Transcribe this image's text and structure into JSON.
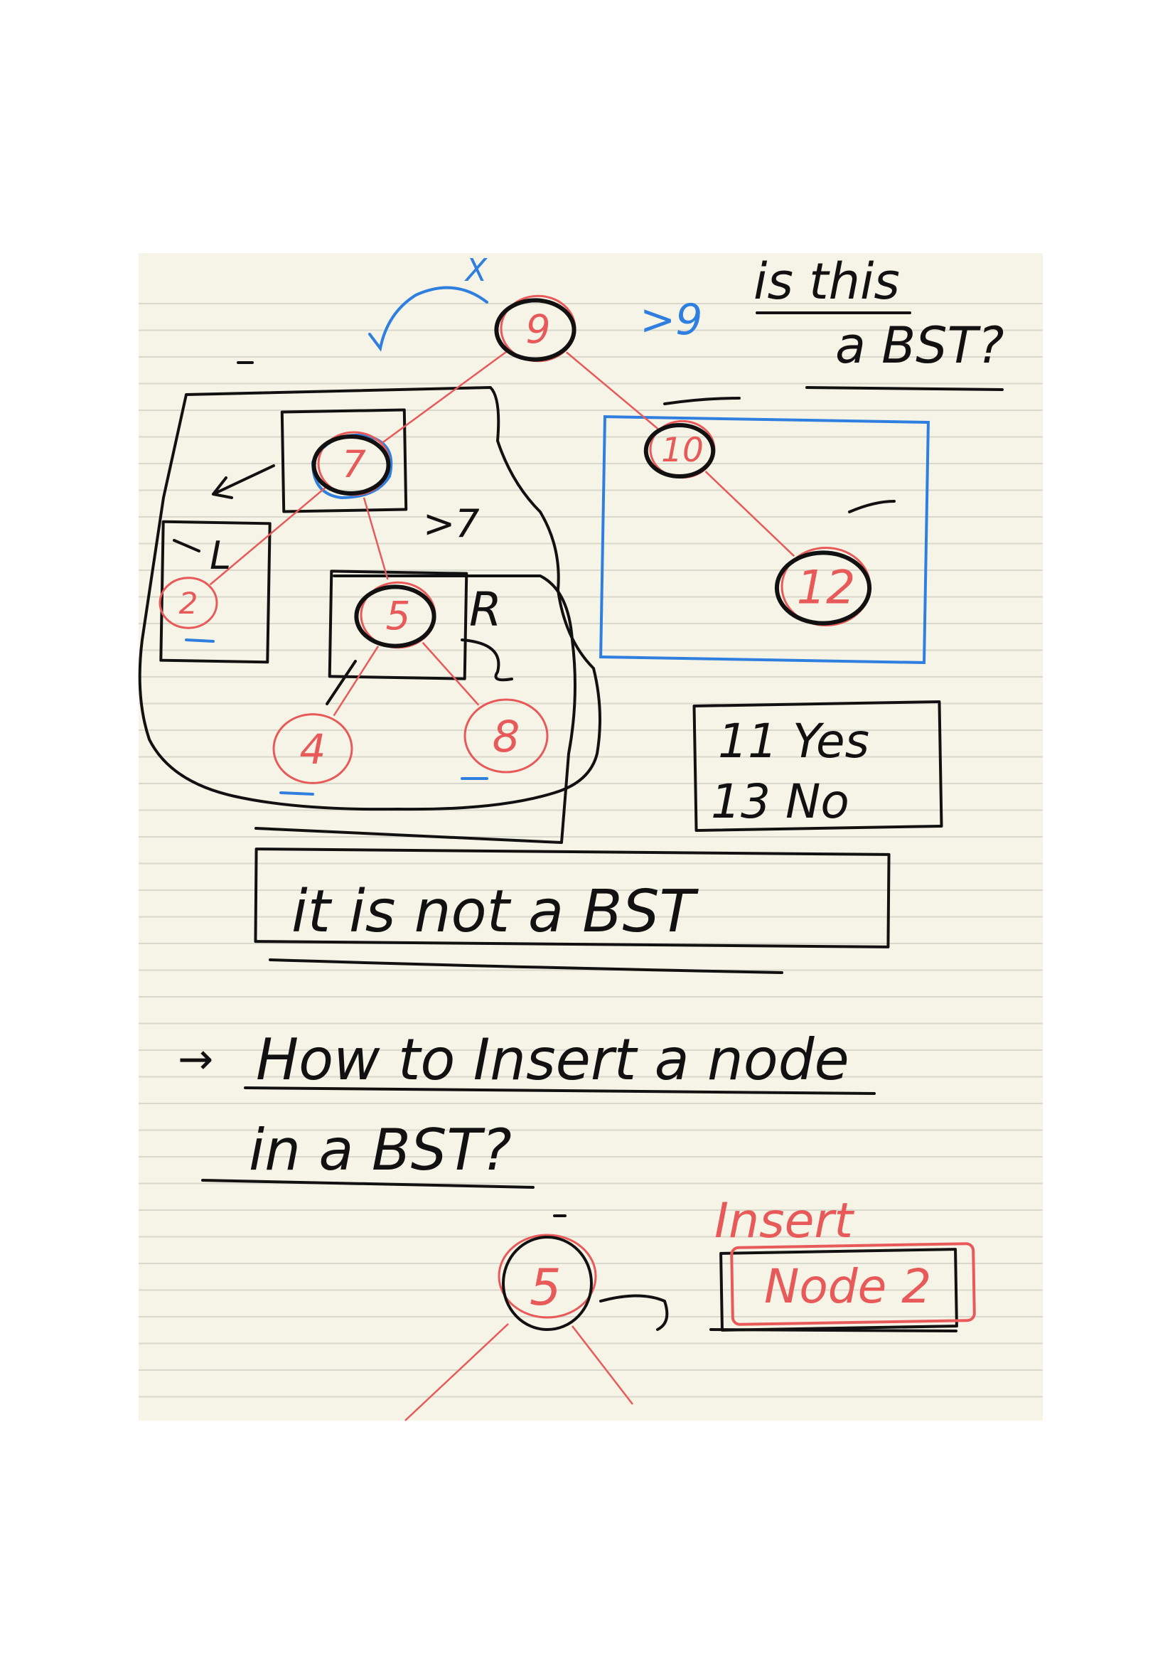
{
  "colors": {
    "paper": "#f6f4e6",
    "rule_line": "#d9d8cc",
    "black_ink": "#111111",
    "red_ink": "#e85a5a",
    "blue_ink": "#2f7fe0"
  },
  "tree1": {
    "nodes": [
      {
        "id": "n9",
        "label": "9"
      },
      {
        "id": "n7",
        "label": "7"
      },
      {
        "id": "n10",
        "label": "10"
      },
      {
        "id": "n2",
        "label": "2"
      },
      {
        "id": "n5",
        "label": "5"
      },
      {
        "id": "n12",
        "label": "12"
      },
      {
        "id": "n4",
        "label": "4"
      },
      {
        "id": "n8",
        "label": "8"
      }
    ],
    "edges": [
      [
        "n9",
        "n7"
      ],
      [
        "n9",
        "n10"
      ],
      [
        "n7",
        "n2"
      ],
      [
        "n7",
        "n5"
      ],
      [
        "n10",
        "n12"
      ],
      [
        "n5",
        "n4"
      ],
      [
        "n5",
        "n8"
      ]
    ],
    "marks": {
      "root_blue": "X",
      "gt9": ">9",
      "gt7": ">7",
      "left": "L",
      "right": "R"
    }
  },
  "question": {
    "line1": "is this",
    "line2": "a BST?"
  },
  "answer_box": {
    "line1": "11 Yes",
    "line2": "13 No"
  },
  "conclusion": "it is not a BST",
  "heading": {
    "arrow": "→",
    "line1": "How to Insert a node",
    "line2": "in a BST?"
  },
  "tree2": {
    "root": "5",
    "insert_label": "Insert",
    "insert_box": "Node 2"
  }
}
